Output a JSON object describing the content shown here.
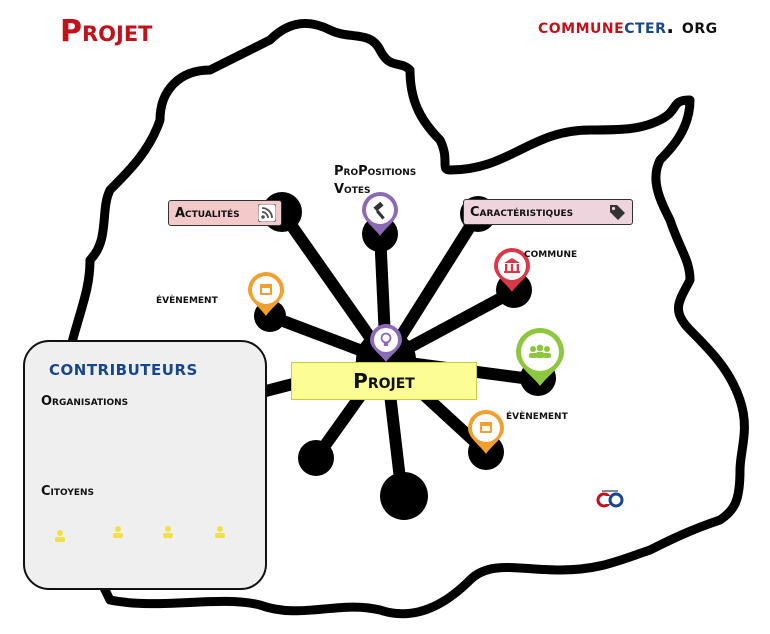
{
  "page_title": "Projet",
  "brand": {
    "part1": "commune",
    "part2": "cter",
    "part3": ". org"
  },
  "center": {
    "label": "Projet",
    "icon": "lightbulb-icon"
  },
  "labels": {
    "actualites": "Actualités",
    "propositions_line1": "ProPositions",
    "propositions_line2": "Votes",
    "caracteristiques": "Caractéristiques",
    "commune": "commune",
    "evenement_left": "évènement",
    "evenement_right": "évènement"
  },
  "contributors": {
    "title": "contributeurs",
    "organisations_label": "Organisations",
    "citoyens_label": "Citoyens"
  },
  "colors": {
    "title_red": "#c0121b",
    "brand_blue": "#17468c",
    "event_orange": "#f0a030",
    "proposal_purple": "#8b6bb5",
    "commune_red": "#d8384a",
    "org_green": "#8dc63f",
    "citizen_yellow": "#f2e04a",
    "note_yellow": "#fdfd96"
  }
}
